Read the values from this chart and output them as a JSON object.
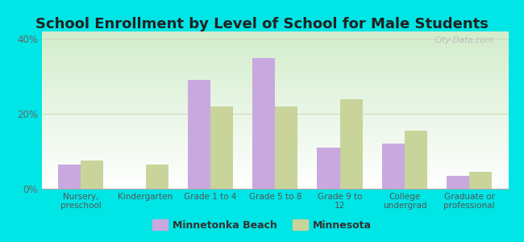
{
  "title": "School Enrollment by Level of School for Male Students",
  "categories": [
    "Nursery,\npreschool",
    "Kindergarten",
    "Grade 1 to 4",
    "Grade 5 to 8",
    "Grade 9 to\n12",
    "College\nundergrad",
    "Graduate or\nprofessional"
  ],
  "minnetonka_beach": [
    6.5,
    0,
    29,
    35,
    11,
    12,
    3.5
  ],
  "minnesota": [
    7.5,
    6.5,
    22,
    22,
    24,
    15.5,
    4.5
  ],
  "bar_color_mb": "#c9a8e0",
  "bar_color_mn": "#c8d49a",
  "ylim": [
    0,
    42
  ],
  "yticks": [
    0,
    20,
    40
  ],
  "ytick_labels": [
    "0%",
    "20%",
    "40%"
  ],
  "legend_label_mb": "Minnetonka Beach",
  "legend_label_mn": "Minnesota",
  "figure_bg": "#00e5e5",
  "plot_bg_left": "#ffffff",
  "plot_bg_right": "#d4edcc",
  "watermark": "City-Data.com",
  "title_fontsize": 13,
  "bar_width": 0.35,
  "title_color": "#222222"
}
